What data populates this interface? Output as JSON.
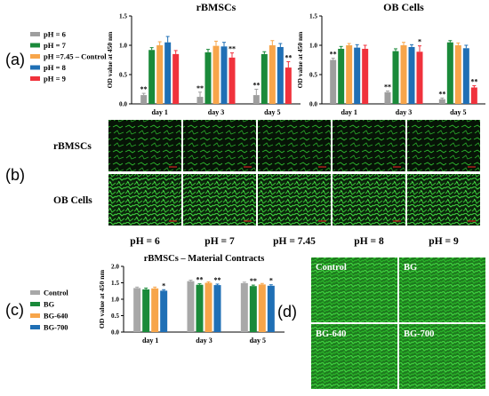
{
  "panel_labels": [
    "(a)",
    "(b)",
    "(c)",
    "(d)"
  ],
  "colors": {
    "pH_6": "#9e9e9e",
    "pH_7": "#1a8a3a",
    "pH_7_45": "#f7a54a",
    "pH_8": "#1f6fb5",
    "pH_9": "#f0323c",
    "control": "#a8a8a8",
    "BG": "#1a8a3a",
    "BG_640": "#f7a54a",
    "BG_700": "#1f6fb5",
    "cell_green": "#2fbf2f"
  },
  "legend_a": [
    "pH = 6",
    "pH = 7",
    "pH =7.45 – Control",
    "pH = 8",
    "pH = 9"
  ],
  "legend_c": [
    "Control",
    "BG",
    "BG-640",
    "BG-700"
  ],
  "image_grid_b": {
    "row_labels": [
      "rBMSCs",
      "OB Cells"
    ],
    "col_labels": [
      "pH = 6",
      "pH = 7",
      "pH = 7.45",
      "pH = 8",
      "pH = 9"
    ]
  },
  "image_grid_d": {
    "labels": [
      "Control",
      "BG",
      "BG-640",
      "BG-700"
    ]
  },
  "chart_data": [
    {
      "type": "bar",
      "title": "rBMSCs",
      "ylabel": "OD value at 450 nm",
      "ylim": [
        0,
        1.5
      ],
      "yticks": [
        "0.0",
        "0.5",
        "1.0",
        "1.5"
      ],
      "categories": [
        "day 1",
        "day 3",
        "day 5"
      ],
      "series": [
        {
          "name": "pH = 6",
          "values": [
            0.15,
            0.12,
            0.15
          ],
          "errors": [
            0.03,
            0.08,
            0.1
          ]
        },
        {
          "name": "pH = 7",
          "values": [
            0.92,
            0.88,
            0.85
          ],
          "errors": [
            0.04,
            0.05,
            0.04
          ]
        },
        {
          "name": "pH =7.45 – Control",
          "values": [
            1.0,
            0.99,
            1.0
          ],
          "errors": [
            0.06,
            0.08,
            0.08
          ]
        },
        {
          "name": "pH = 8",
          "values": [
            1.05,
            0.98,
            0.97
          ],
          "errors": [
            0.1,
            0.07,
            0.06
          ]
        },
        {
          "name": "pH = 9",
          "values": [
            0.85,
            0.79,
            0.62
          ],
          "errors": [
            0.06,
            0.08,
            0.1
          ]
        }
      ],
      "annotations": [
        [
          "**",
          "",
          "",
          "",
          ""
        ],
        [
          "**",
          "",
          "",
          "",
          "**"
        ],
        [
          "**",
          "",
          "",
          "",
          "**"
        ]
      ]
    },
    {
      "type": "bar",
      "title": "OB Cells",
      "ylabel": "OD value at 450 nm",
      "ylim": [
        0,
        1.5
      ],
      "yticks": [
        "0.0",
        "0.5",
        "1.0",
        "1.5"
      ],
      "categories": [
        "day 1",
        "day 3",
        "day 5"
      ],
      "series": [
        {
          "name": "pH = 6",
          "values": [
            0.75,
            0.2,
            0.08
          ],
          "errors": [
            0.03,
            0.02,
            0.02
          ]
        },
        {
          "name": "pH = 7",
          "values": [
            0.94,
            0.9,
            1.05
          ],
          "errors": [
            0.04,
            0.04,
            0.03
          ]
        },
        {
          "name": "pH =7.45 – Control",
          "values": [
            1.0,
            1.0,
            1.0
          ],
          "errors": [
            0.03,
            0.05,
            0.04
          ]
        },
        {
          "name": "pH = 8",
          "values": [
            0.96,
            0.97,
            0.95
          ],
          "errors": [
            0.05,
            0.04,
            0.05
          ]
        },
        {
          "name": "pH = 9",
          "values": [
            0.94,
            0.89,
            0.28
          ],
          "errors": [
            0.06,
            0.1,
            0.03
          ]
        }
      ],
      "annotations": [
        [
          "**",
          "",
          "",
          "",
          ""
        ],
        [
          "**",
          "",
          "",
          "",
          "*"
        ],
        [
          "**",
          "",
          "",
          "",
          "**"
        ]
      ]
    },
    {
      "type": "bar",
      "title": "rBMSCs – Material Contracts",
      "ylabel": "OD value at 450 nm",
      "ylim": [
        0,
        2.0
      ],
      "yticks": [
        "0.0",
        "0.5",
        "1.0",
        "1.5",
        "2.0"
      ],
      "categories": [
        "day 1",
        "day 3",
        "day 5"
      ],
      "series": [
        {
          "name": "Control",
          "values": [
            1.34,
            1.55,
            1.49
          ],
          "errors": [
            0.03,
            0.03,
            0.03
          ]
        },
        {
          "name": "BG",
          "values": [
            1.3,
            1.44,
            1.4
          ],
          "errors": [
            0.04,
            0.03,
            0.03
          ]
        },
        {
          "name": "BG-640",
          "values": [
            1.33,
            1.5,
            1.45
          ],
          "errors": [
            0.04,
            0.03,
            0.03
          ]
        },
        {
          "name": "BG-700",
          "values": [
            1.26,
            1.43,
            1.41
          ],
          "errors": [
            0.03,
            0.03,
            0.03
          ]
        }
      ],
      "annotations": [
        [
          "",
          "",
          "",
          "*"
        ],
        [
          "",
          "**",
          "",
          "**"
        ],
        [
          "",
          "**",
          "",
          "*"
        ]
      ]
    }
  ]
}
